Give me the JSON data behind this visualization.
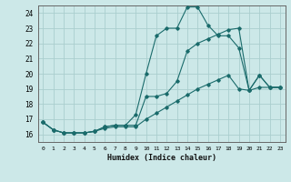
{
  "title": "",
  "xlabel": "Humidex (Indice chaleur)",
  "ylabel": "",
  "bg_color": "#cce8e8",
  "grid_color": "#aacece",
  "line_color": "#1a6b6b",
  "xlim": [
    -0.5,
    23.5
  ],
  "ylim": [
    15.5,
    24.5
  ],
  "yticks": [
    16,
    17,
    18,
    19,
    20,
    21,
    22,
    23,
    24
  ],
  "xticks": [
    0,
    1,
    2,
    3,
    4,
    5,
    6,
    7,
    8,
    9,
    10,
    11,
    12,
    13,
    14,
    15,
    16,
    17,
    18,
    19,
    20,
    21,
    22,
    23
  ],
  "line1_x": [
    0,
    1,
    2,
    3,
    4,
    5,
    6,
    7,
    8,
    9,
    10,
    11,
    12,
    13,
    14,
    15,
    16,
    17,
    18,
    19,
    20,
    21,
    22,
    23
  ],
  "line1_y": [
    16.8,
    16.3,
    16.1,
    16.1,
    16.1,
    16.2,
    16.5,
    16.6,
    16.6,
    17.3,
    20.0,
    22.5,
    23.0,
    23.0,
    24.4,
    24.4,
    23.2,
    22.5,
    22.5,
    21.7,
    18.9,
    19.9,
    19.1,
    19.1
  ],
  "line2_x": [
    0,
    1,
    2,
    3,
    4,
    5,
    6,
    7,
    8,
    9,
    10,
    11,
    12,
    13,
    14,
    15,
    16,
    17,
    18,
    19,
    20,
    21,
    22,
    23
  ],
  "line2_y": [
    16.8,
    16.3,
    16.1,
    16.1,
    16.1,
    16.2,
    16.5,
    16.6,
    16.6,
    16.6,
    18.5,
    18.5,
    18.7,
    19.5,
    21.5,
    22.0,
    22.3,
    22.6,
    22.9,
    23.0,
    18.9,
    19.9,
    19.1,
    19.1
  ],
  "line3_x": [
    0,
    1,
    2,
    3,
    4,
    5,
    6,
    7,
    8,
    9,
    10,
    11,
    12,
    13,
    14,
    15,
    16,
    17,
    18,
    19,
    20,
    21,
    22,
    23
  ],
  "line3_y": [
    16.8,
    16.3,
    16.1,
    16.1,
    16.1,
    16.2,
    16.4,
    16.5,
    16.5,
    16.5,
    17.0,
    17.4,
    17.8,
    18.2,
    18.6,
    19.0,
    19.3,
    19.6,
    19.9,
    19.0,
    18.9,
    19.1,
    19.1,
    19.1
  ],
  "figsize": [
    3.2,
    2.0
  ],
  "dpi": 100
}
